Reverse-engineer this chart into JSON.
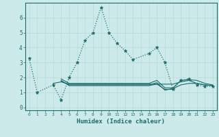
{
  "title": "",
  "xlabel": "Humidex (Indice chaleur)",
  "ylabel": "",
  "background_color": "#cdeaea",
  "line_color": "#1a6b6b",
  "grid_color": "#b8d8d8",
  "xlim": [
    -0.5,
    23.5
  ],
  "ylim": [
    -0.2,
    7.0
  ],
  "xticks": [
    0,
    1,
    2,
    3,
    4,
    5,
    6,
    7,
    8,
    9,
    10,
    11,
    12,
    13,
    14,
    15,
    16,
    17,
    18,
    19,
    20,
    21,
    22,
    23
  ],
  "yticks": [
    0,
    1,
    2,
    3,
    4,
    5,
    6
  ],
  "series": [
    [
      3.3,
      1.0,
      null,
      1.5,
      0.5,
      2.0,
      3.0,
      4.5,
      5.0,
      6.7,
      5.0,
      4.3,
      3.8,
      3.2,
      null,
      3.6,
      4.0,
      3.0,
      1.2,
      1.8,
      1.9,
      1.5,
      1.4,
      1.4
    ],
    [
      null,
      null,
      null,
      1.6,
      1.7,
      1.55,
      1.55,
      1.55,
      1.55,
      1.55,
      1.55,
      1.55,
      1.55,
      1.55,
      1.55,
      1.55,
      1.55,
      1.55,
      1.55,
      1.7,
      1.8,
      1.6,
      1.5,
      1.45
    ],
    [
      null,
      null,
      null,
      null,
      1.8,
      1.45,
      1.45,
      1.45,
      1.45,
      1.45,
      1.45,
      1.45,
      1.45,
      1.45,
      1.45,
      1.45,
      1.55,
      1.2,
      1.2,
      null,
      null,
      null,
      null,
      null
    ],
    [
      null,
      null,
      null,
      null,
      1.75,
      1.5,
      1.5,
      1.5,
      1.5,
      1.5,
      1.5,
      1.5,
      1.5,
      1.5,
      1.5,
      1.5,
      1.65,
      1.15,
      1.25,
      1.5,
      1.6,
      1.6,
      1.5,
      1.45
    ],
    [
      null,
      null,
      null,
      null,
      1.9,
      1.6,
      1.6,
      1.6,
      1.6,
      1.6,
      1.6,
      1.6,
      1.6,
      1.6,
      1.6,
      1.6,
      1.8,
      1.3,
      1.3,
      1.8,
      1.85,
      1.8,
      1.6,
      1.5
    ]
  ]
}
